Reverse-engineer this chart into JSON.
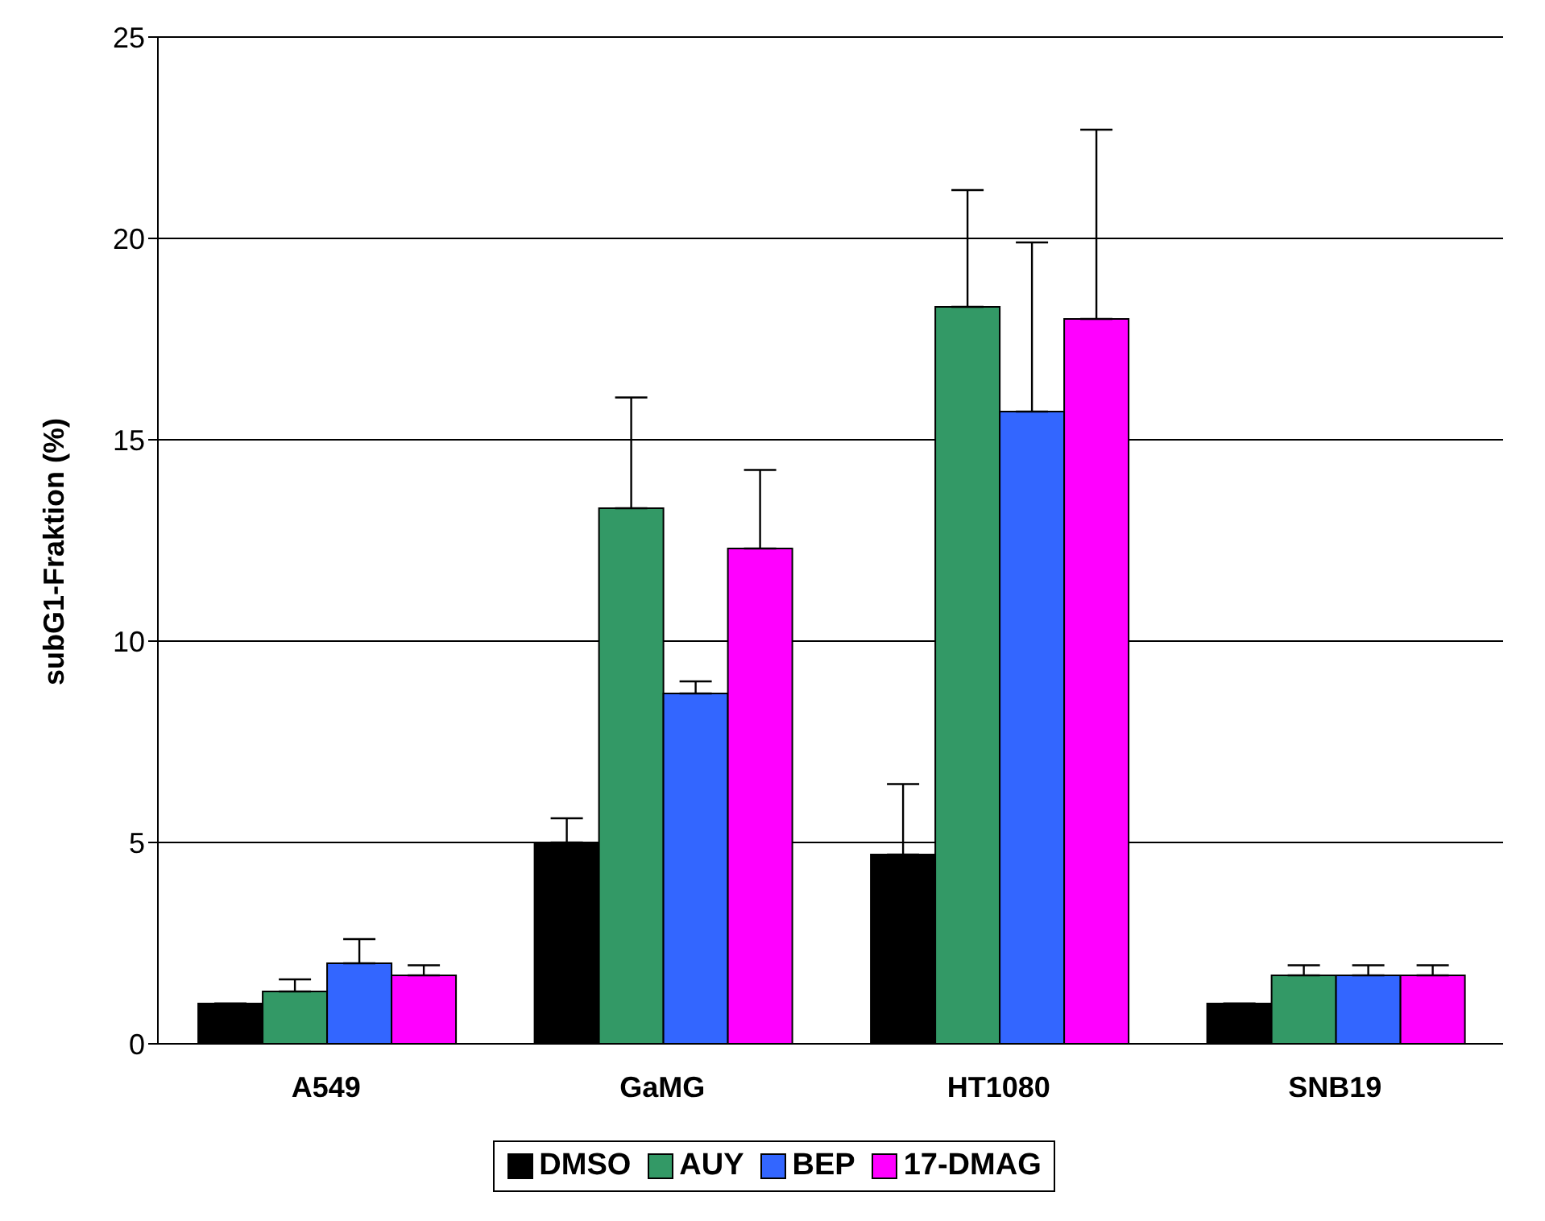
{
  "chart_data": {
    "type": "bar",
    "ylabel": "subG1-Fraktion (%)",
    "categories": [
      "A549",
      "GaMG",
      "HT1080",
      "SNB19"
    ],
    "series": [
      {
        "name": "DMSO",
        "color": "#000000",
        "values": [
          1.0,
          5.0,
          4.7,
          1.0
        ],
        "errors": [
          null,
          [
            5.0,
            5.6
          ],
          [
            4.7,
            6.45
          ],
          null
        ]
      },
      {
        "name": "AUY",
        "color": "#339966",
        "values": [
          1.3,
          13.3,
          18.3,
          1.7
        ],
        "errors": [
          [
            1.3,
            1.6
          ],
          [
            13.3,
            16.05
          ],
          [
            18.3,
            21.2
          ],
          [
            1.7,
            1.95
          ]
        ]
      },
      {
        "name": "BEP",
        "color": "#3366ff",
        "values": [
          2.0,
          8.7,
          15.7,
          1.7
        ],
        "errors": [
          [
            2.0,
            2.6
          ],
          [
            8.7,
            9.0
          ],
          [
            15.7,
            19.9
          ],
          [
            1.7,
            1.95
          ]
        ]
      },
      {
        "name": "17-DMAG",
        "color": "#ff00ff",
        "values": [
          1.7,
          12.3,
          18.0,
          1.7
        ],
        "errors": [
          [
            1.7,
            1.95
          ],
          [
            12.3,
            14.25
          ],
          [
            18.0,
            22.7
          ],
          [
            1.7,
            1.95
          ]
        ]
      }
    ],
    "ylim": [
      0,
      25
    ],
    "yticks": [
      0,
      5,
      10,
      15,
      20,
      25
    ],
    "grid": "y",
    "legend": "bottom"
  }
}
